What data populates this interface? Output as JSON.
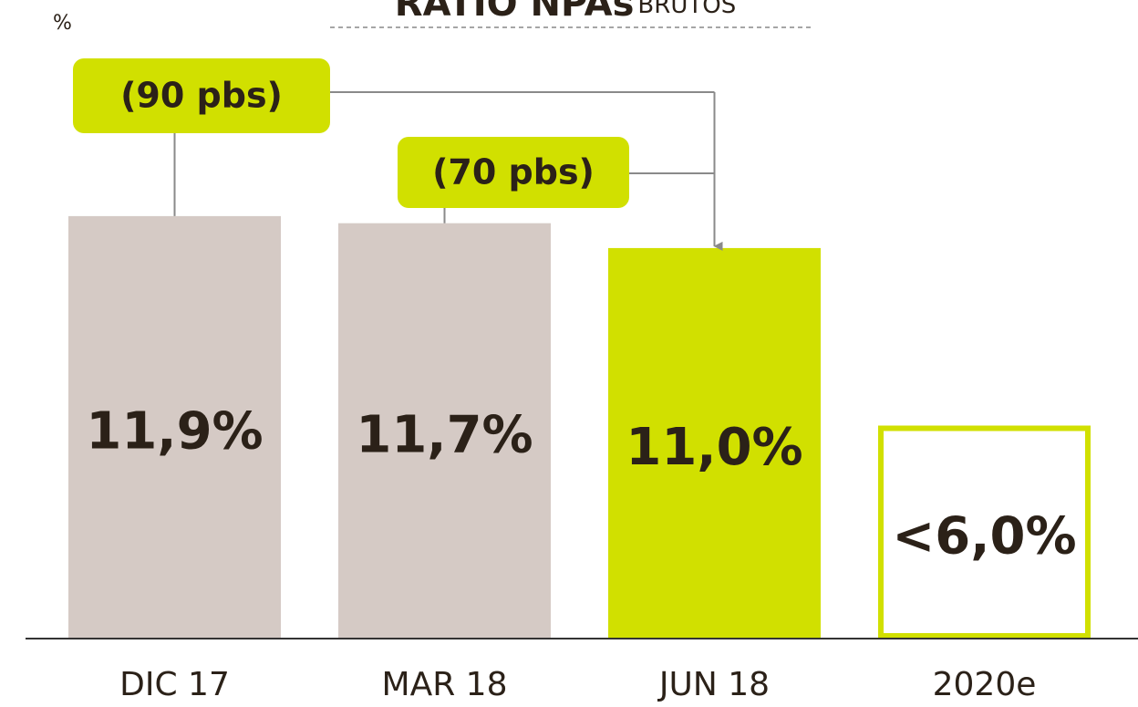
{
  "chart_data": {
    "type": "bar",
    "title": "RATIO NPAs",
    "subtitle": "BRUTOS",
    "y_unit": "%",
    "categories": [
      "DIC 17",
      "MAR 18",
      "JUN 18",
      "2020e"
    ],
    "values": [
      11.9,
      11.7,
      11.0,
      6.0
    ],
    "value_labels": [
      "11,9%",
      "11,7%",
      "11,0%",
      "<6,0%"
    ],
    "colors": [
      "#d5cac5",
      "#d5cac5",
      "#d1e000",
      "#d1e000"
    ],
    "outlined": [
      false,
      false,
      false,
      true
    ],
    "ylim": [
      0,
      12
    ],
    "annotations": [
      {
        "text": "(90 pbs)",
        "from": 0,
        "to": 2
      },
      {
        "text": "(70 pbs)",
        "from": 1,
        "to": 2
      }
    ],
    "annotation_color": "#d1e000"
  }
}
